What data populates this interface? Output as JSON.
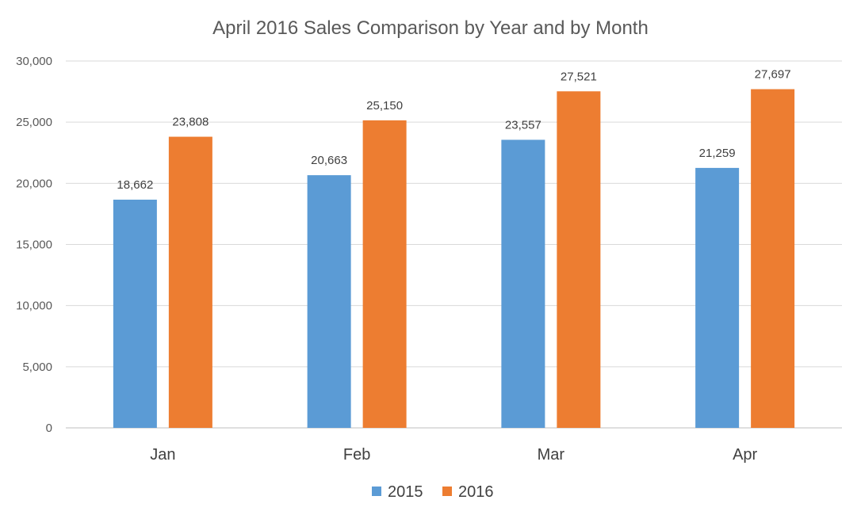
{
  "chart_data": {
    "type": "bar",
    "title": "April 2016 Sales Comparison by Year and by Month",
    "categories": [
      "Jan",
      "Feb",
      "Mar",
      "Apr"
    ],
    "series": [
      {
        "name": "2015",
        "color": "#5b9bd5",
        "values": [
          18662,
          20663,
          23557,
          21259
        ]
      },
      {
        "name": "2016",
        "color": "#ed7d31",
        "values": [
          23808,
          25150,
          27521,
          27697
        ]
      }
    ],
    "value_labels": [
      [
        "18,662",
        "20,663",
        "23,557",
        "21,259"
      ],
      [
        "23,808",
        "25,150",
        "27,521",
        "27,697"
      ]
    ],
    "ylim": [
      0,
      30000
    ],
    "yticks": [
      0,
      5000,
      10000,
      15000,
      20000,
      25000,
      30000
    ],
    "ytick_labels": [
      "0",
      "5,000",
      "10,000",
      "15,000",
      "20,000",
      "25,000",
      "30,000"
    ],
    "grid": true,
    "legend_position": "bottom"
  }
}
